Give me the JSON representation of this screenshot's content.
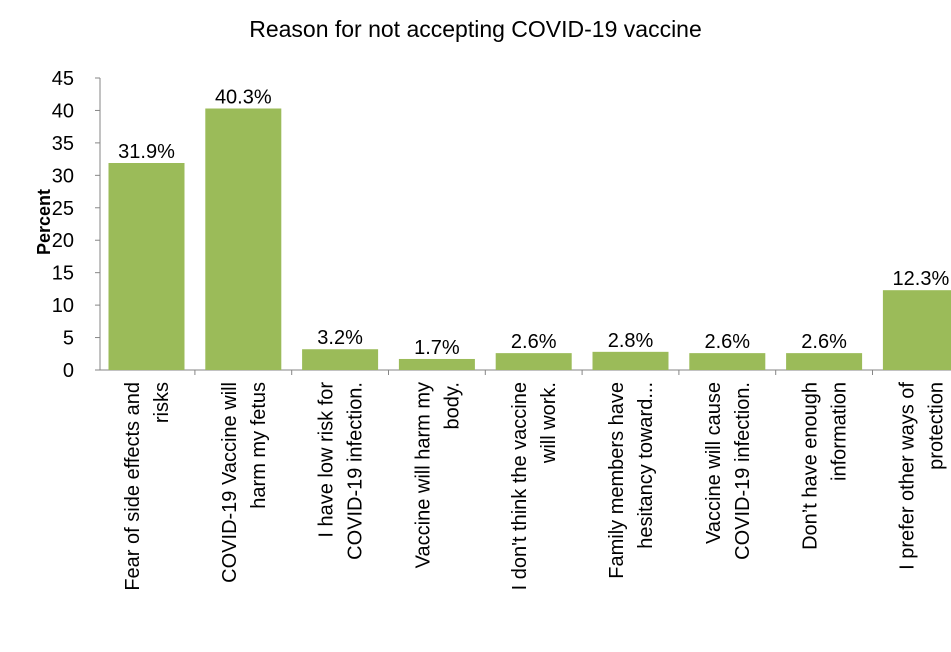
{
  "chart_data": {
    "type": "bar",
    "title": "Reason for not accepting COVID-19  vaccine",
    "xlabel": "",
    "ylabel": "Percent",
    "ylim": [
      0,
      45
    ],
    "ytick_step": 5,
    "grid": false,
    "legend": "none",
    "bar_color": "#9BBB59",
    "categories": [
      [
        "Fear of side effects and",
        "risks"
      ],
      [
        "COVID-19 Vaccine will",
        "harm my fetus"
      ],
      [
        "I have low risk for",
        "COVID-19 infection."
      ],
      [
        "Vaccine will harm my",
        "body."
      ],
      [
        "I don't think the vaccine",
        "will work."
      ],
      [
        "Family members have",
        "hesitancy toward..."
      ],
      [
        "Vaccine will cause",
        "COVID-19 infection."
      ],
      [
        "Don’t have enough",
        "information"
      ],
      [
        "I prefer other ways of",
        "protection"
      ]
    ],
    "values": [
      31.9,
      40.3,
      3.2,
      1.7,
      2.6,
      2.8,
      2.6,
      2.6,
      12.3
    ],
    "data_labels": [
      "31.9%",
      "40.3%",
      "3.2%",
      "1.7%",
      "2.6%",
      "2.8%",
      "2.6%",
      "2.6%",
      "12.3%"
    ]
  }
}
